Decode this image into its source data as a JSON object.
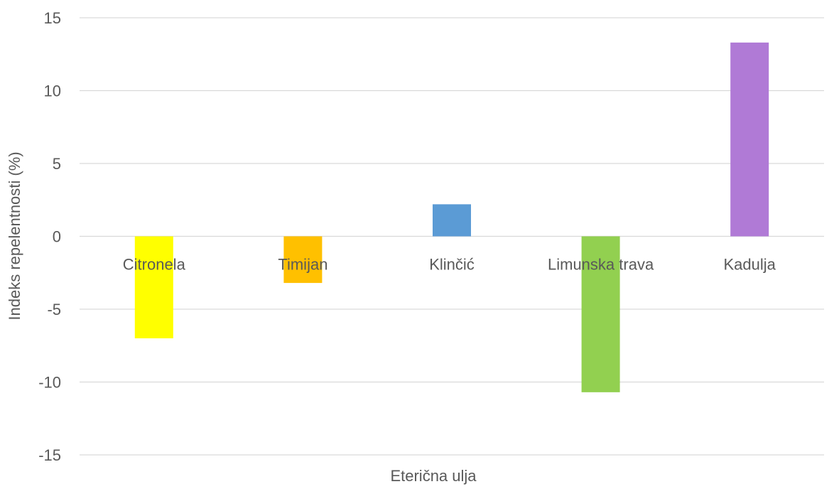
{
  "chart_data": {
    "type": "bar",
    "title": "",
    "xlabel": "Eterična ulja",
    "ylabel": "Indeks repelentnosti (%)",
    "ylim": [
      -15,
      15
    ],
    "yticks": [
      15,
      10,
      5,
      0,
      -5,
      -10,
      -15
    ],
    "yticks_labels": [
      "15",
      "10",
      "5",
      "0",
      "-5",
      "-10",
      "-15"
    ],
    "grid": true,
    "legend": "none",
    "categories": [
      "Citronela",
      "Timijan",
      "Klinčić",
      "Limunska trava",
      "Kadulja"
    ],
    "series": [
      {
        "values": [
          -7.0,
          -3.2,
          2.2,
          -10.7,
          13.3
        ],
        "colors": [
          "#ffff00",
          "#ffc000",
          "#5b9bd5",
          "#92d050",
          "#b07ad6"
        ]
      }
    ]
  }
}
